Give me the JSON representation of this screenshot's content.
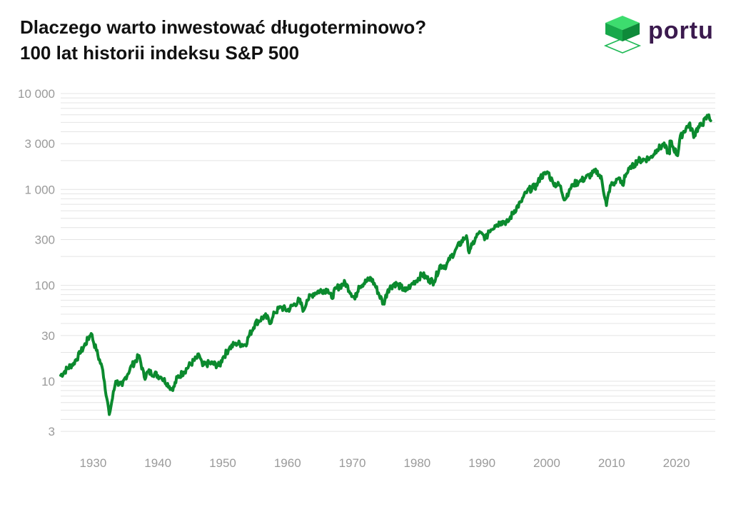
{
  "header": {
    "title_line1": "Dlaczego warto inwestować długoterminowo?",
    "title_line2": "100 lat historii indeksu S&P 500"
  },
  "logo": {
    "text": "portu",
    "icon": "cube-logo-icon",
    "color": "#1db954"
  },
  "colors": {
    "line": "#0b8a2e",
    "grid": "#e4e4e4",
    "tick": "#9a9a9a"
  },
  "chart_data": {
    "type": "line",
    "title": "Dlaczego warto inwestować długoterminowo? 100 lat historii indeksu S&P 500",
    "xlabel": "",
    "ylabel": "",
    "y_scale": "log",
    "xlim": [
      1925,
      2026
    ],
    "ylim": [
      2.5,
      11000
    ],
    "x_ticks": [
      1930,
      1940,
      1950,
      1960,
      1970,
      1980,
      1990,
      2000,
      2010,
      2020
    ],
    "y_ticks": [
      3,
      10,
      30,
      100,
      300,
      1000,
      3000,
      10000
    ],
    "y_tick_labels": [
      "3",
      "10",
      "30",
      "100",
      "300",
      "1 000",
      "3 000",
      "10 000"
    ],
    "grid": true,
    "series": [
      {
        "x": [
          1925,
          1926,
          1927,
          1928,
          1929.7,
          1930.5,
          1931.5,
          1932.5,
          1933.5,
          1934.5,
          1935,
          1936,
          1937.1,
          1937.9,
          1938.5,
          1939.5,
          1940.5,
          1941.5,
          1942.3,
          1943,
          1944,
          1945,
          1946.4,
          1946.9,
          1948,
          1949.5,
          1950,
          1951,
          1952,
          1953.5,
          1954,
          1955,
          1956.5,
          1957.5,
          1958,
          1959,
          1960,
          1961.8,
          1962.5,
          1963,
          1964,
          1965,
          1966.2,
          1966.8,
          1967.5,
          1968.9,
          1970.4,
          1971,
          1972.9,
          1973.5,
          1974.8,
          1975.5,
          1976.5,
          1977.5,
          1978.2,
          1979,
          1980.8,
          1981.5,
          1982.6,
          1983.5,
          1984.5,
          1985,
          1986,
          1987.6,
          1987.9,
          1988.5,
          1989.5,
          1990.8,
          1991,
          1992,
          1993,
          1994,
          1995,
          1996,
          1997,
          1998.5,
          1999,
          2000.2,
          2001,
          2002,
          2002.8,
          2003.5,
          2004,
          2005,
          2006,
          2007.8,
          2008.5,
          2009.2,
          2009.8,
          2010.5,
          2011,
          2011.8,
          2012,
          2013,
          2014,
          2015,
          2016,
          2017,
          2018,
          2018.95,
          2019,
          2020.2,
          2020.5,
          2021,
          2021.95,
          2022.8,
          2023,
          2024,
          2025,
          2025.3
        ],
        "y": [
          11.5,
          13.5,
          15.5,
          19.5,
          31.5,
          21,
          13,
          4.5,
          10,
          9,
          11,
          14.5,
          18.5,
          11,
          12.5,
          12,
          11,
          9.5,
          8,
          11,
          12.5,
          15,
          18.5,
          14.5,
          15.5,
          14.5,
          17.5,
          22,
          25,
          24,
          29,
          40,
          48,
          41,
          52,
          59,
          55,
          70,
          55,
          70,
          82,
          88,
          90,
          74,
          93,
          106,
          72,
          98,
          118,
          100,
          64,
          90,
          105,
          96,
          87,
          100,
          130,
          118,
          108,
          160,
          160,
          185,
          240,
          330,
          230,
          265,
          350,
          310,
          370,
          420,
          460,
          460,
          600,
          740,
          970,
          1100,
          1350,
          1500,
          1150,
          1100,
          780,
          1000,
          1130,
          1200,
          1320,
          1560,
          1250,
          680,
          1100,
          1180,
          1300,
          1100,
          1400,
          1650,
          2000,
          2050,
          2150,
          2600,
          2900,
          2350,
          3200,
          2250,
          3300,
          3900,
          4800,
          3600,
          4100,
          4800,
          6000,
          5200
        ]
      }
    ]
  }
}
